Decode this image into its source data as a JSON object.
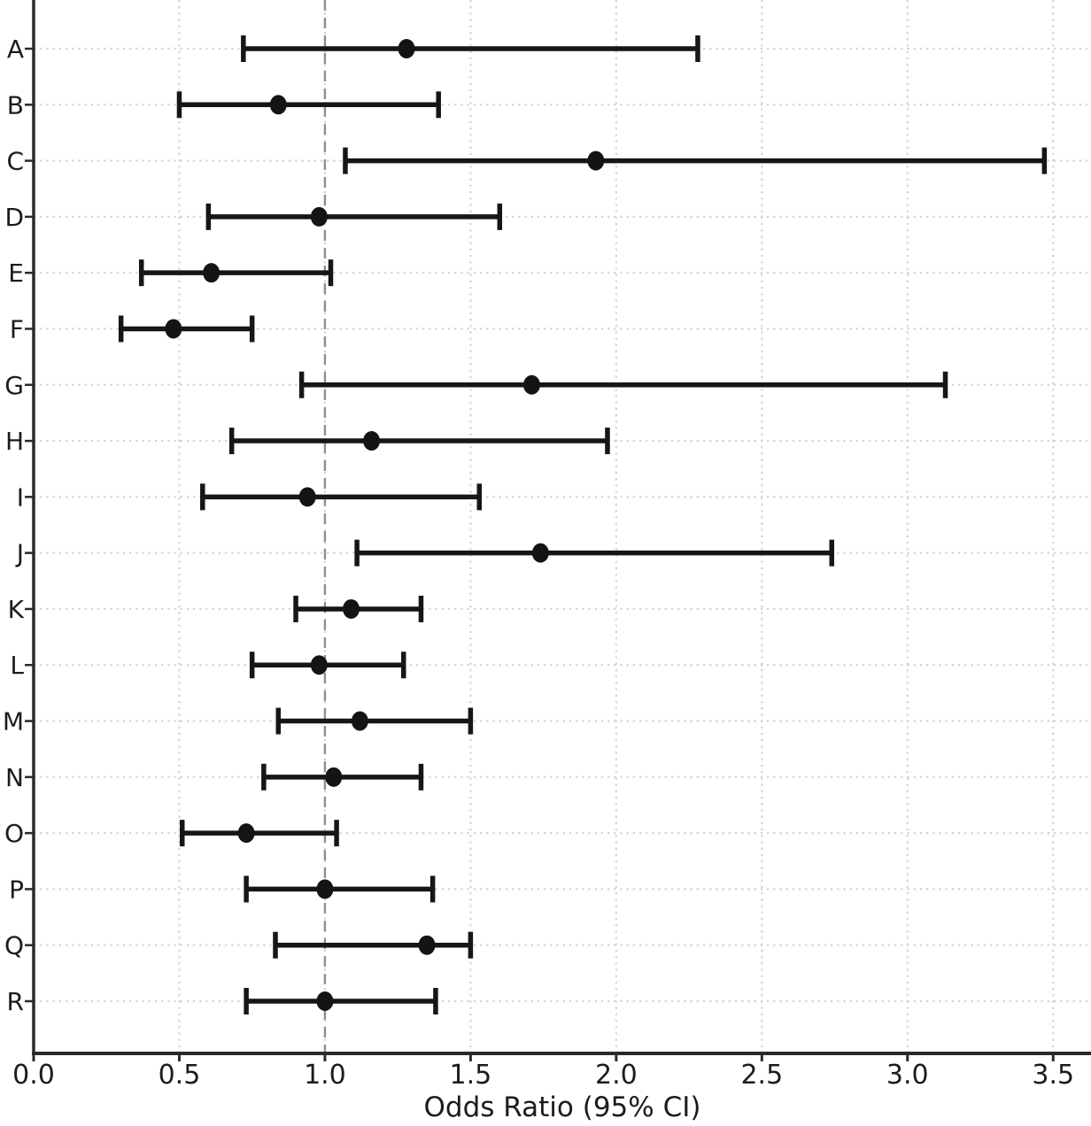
{
  "chart_data": {
    "type": "scatter",
    "variant": "forest-plot",
    "title": "",
    "xlabel": "Odds Ratio (95% CI)",
    "ylabel": "",
    "legend": "none",
    "grid": "dotted, both axes",
    "reference_line": 1.0,
    "xlim": [
      0,
      3.63
    ],
    "xticks": {
      "values": [
        0,
        0.5,
        1.0,
        1.5,
        2.0,
        2.5,
        3.0,
        3.5
      ],
      "labels": [
        "0.0",
        "0.5",
        "1.0",
        "1.5",
        "2.0",
        "2.5",
        "3.0",
        "3.5"
      ]
    },
    "categories": [
      "A",
      "B",
      "C",
      "D",
      "E",
      "F",
      "G",
      "H",
      "I",
      "J",
      "K",
      "L",
      "M",
      "N",
      "O",
      "P",
      "Q",
      "R"
    ],
    "rows": [
      {
        "label": "A",
        "or": 1.28,
        "lo": 0.72,
        "hi": 2.28
      },
      {
        "label": "B",
        "or": 0.84,
        "lo": 0.5,
        "hi": 1.39
      },
      {
        "label": "C",
        "or": 1.93,
        "lo": 1.07,
        "hi": 3.47
      },
      {
        "label": "D",
        "or": 0.98,
        "lo": 0.6,
        "hi": 1.6
      },
      {
        "label": "E",
        "or": 0.61,
        "lo": 0.37,
        "hi": 1.02
      },
      {
        "label": "F",
        "or": 0.48,
        "lo": 0.3,
        "hi": 0.75
      },
      {
        "label": "G",
        "or": 1.71,
        "lo": 0.92,
        "hi": 3.13
      },
      {
        "label": "H",
        "or": 1.16,
        "lo": 0.68,
        "hi": 1.97
      },
      {
        "label": "I",
        "or": 0.94,
        "lo": 0.58,
        "hi": 1.53
      },
      {
        "label": "J",
        "or": 1.74,
        "lo": 1.11,
        "hi": 2.74
      },
      {
        "label": "K",
        "or": 1.09,
        "lo": 0.9,
        "hi": 1.33
      },
      {
        "label": "L",
        "or": 0.98,
        "lo": 0.75,
        "hi": 1.27
      },
      {
        "label": "M",
        "or": 1.12,
        "lo": 0.84,
        "hi": 1.5
      },
      {
        "label": "N",
        "or": 1.03,
        "lo": 0.79,
        "hi": 1.33
      },
      {
        "label": "O",
        "or": 0.73,
        "lo": 0.51,
        "hi": 1.04
      },
      {
        "label": "P",
        "or": 1.0,
        "lo": 0.73,
        "hi": 1.37
      },
      {
        "label": "Q",
        "or": 1.35,
        "lo": 0.83,
        "hi": 1.5
      },
      {
        "label": "R",
        "or": 1.0,
        "lo": 0.73,
        "hi": 1.38
      }
    ]
  },
  "styles": {
    "background": "#ffffff",
    "marker_color": "#141414",
    "errorbar_color": "#161616",
    "grid_color": "#d2d2d2",
    "reference_color": "#8f8f8f",
    "axis_color": "#2a2a2a",
    "text_color": "#1c1c1c"
  }
}
